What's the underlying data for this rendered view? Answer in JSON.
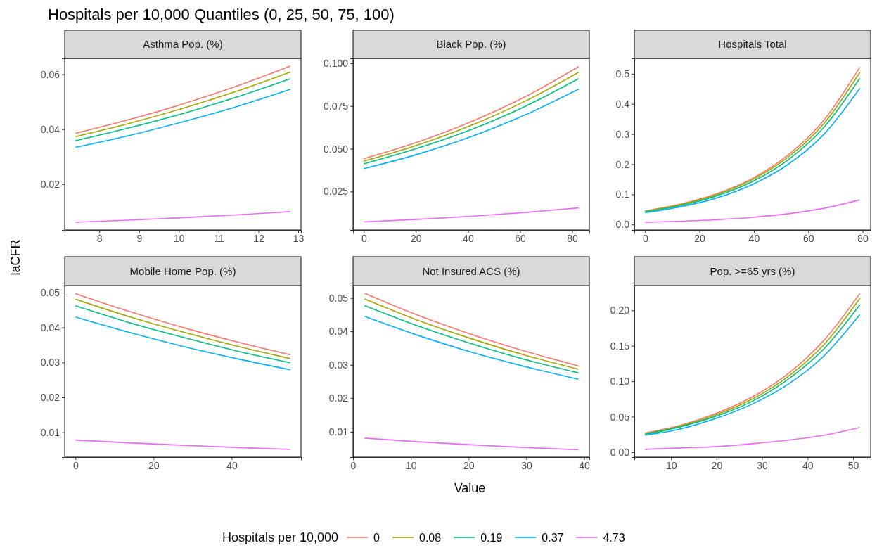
{
  "chart_data": [
    {
      "type": "line",
      "title": "Asthma Pop. (%)",
      "annotations": [
        "Hospitals per 10,000 Quantiles (0, 25, 50, 75, 100)"
      ],
      "ylabel": "laCFR",
      "legend_title": "Hospitals per 10,000",
      "legend": "bottom",
      "grid": false,
      "marker": "none",
      "line_style": "solid",
      "xlim": [
        7.13,
        13.07
      ],
      "xticks": [
        8,
        9,
        10,
        11,
        12,
        13
      ],
      "ylim": [
        0.0033,
        0.0658
      ],
      "yticks": [
        {
          "value": 0.02,
          "label": "0.02"
        },
        {
          "value": 0.04,
          "label": "0.04"
        },
        {
          "value": 0.06,
          "label": "0.06"
        }
      ],
      "series": [
        {
          "name": "0",
          "color": "#f8766d",
          "x": [
            7.4,
            8.75,
            10.1,
            11.45,
            12.8
          ],
          "values": [
            0.0385,
            0.0435,
            0.0492,
            0.0557,
            0.063
          ]
        },
        {
          "name": "0.08",
          "color": "#a3a500",
          "x": [
            7.4,
            8.75,
            10.1,
            11.45,
            12.8
          ],
          "values": [
            0.0373,
            0.0421,
            0.0476,
            0.0538,
            0.0608
          ]
        },
        {
          "name": "0.19",
          "color": "#00bf7d",
          "x": [
            7.4,
            8.75,
            10.1,
            11.45,
            12.8
          ],
          "values": [
            0.0358,
            0.0405,
            0.0457,
            0.0517,
            0.0584
          ]
        },
        {
          "name": "0.37",
          "color": "#00b0f6",
          "x": [
            7.4,
            8.75,
            10.1,
            11.45,
            12.8
          ],
          "values": [
            0.0334,
            0.0377,
            0.0427,
            0.0482,
            0.0545
          ]
        },
        {
          "name": "4.73",
          "color": "#e76bf3",
          "x": [
            7.4,
            8.75,
            10.1,
            11.45,
            12.8
          ],
          "values": [
            0.0061,
            0.0069,
            0.0078,
            0.0088,
            0.01
          ]
        }
      ]
    },
    {
      "type": "line",
      "title": "Black Pop. (%)",
      "grid": false,
      "marker": "none",
      "line_style": "solid",
      "xlim": [
        -4.125,
        86.625
      ],
      "xticks": [
        0,
        20,
        40,
        60,
        80
      ],
      "ylim": [
        0.0026,
        0.1028
      ],
      "yticks": [
        {
          "value": 0.025,
          "label": "0.025"
        },
        {
          "value": 0.05,
          "label": "0.050"
        },
        {
          "value": 0.075,
          "label": "0.075"
        },
        {
          "value": 0.1,
          "label": "0.100"
        }
      ],
      "series": [
        {
          "color": "#f8766d",
          "x": [
            0,
            20.63,
            41.25,
            61.88,
            82.5
          ],
          "values": [
            0.0442,
            0.0539,
            0.0658,
            0.0803,
            0.098
          ]
        },
        {
          "color": "#a3a500",
          "x": [
            0,
            20.63,
            41.25,
            61.88,
            82.5
          ],
          "values": [
            0.0428,
            0.0522,
            0.0637,
            0.0777,
            0.0947
          ]
        },
        {
          "color": "#00bf7d",
          "x": [
            0,
            20.63,
            41.25,
            61.88,
            82.5
          ],
          "values": [
            0.0412,
            0.0503,
            0.0612,
            0.0747,
            0.091
          ]
        },
        {
          "color": "#00b0f6",
          "x": [
            0,
            20.63,
            41.25,
            61.88,
            82.5
          ],
          "values": [
            0.0384,
            0.0468,
            0.0571,
            0.0697,
            0.0848
          ]
        },
        {
          "color": "#e76bf3",
          "x": [
            0,
            20.63,
            41.25,
            61.88,
            82.5
          ],
          "values": [
            0.0073,
            0.0088,
            0.0106,
            0.0128,
            0.0155
          ]
        }
      ]
    },
    {
      "type": "line",
      "title": "Hospitals Total",
      "grid": false,
      "marker": "none",
      "line_style": "solid",
      "xlim": [
        -3.95,
        82.95
      ],
      "xticks": [
        0,
        20,
        40,
        60,
        80
      ],
      "ylim": [
        -0.018,
        0.551
      ],
      "yticks": [
        {
          "value": 0,
          "label": "0.0"
        },
        0.1,
        0.2,
        0.3,
        0.4,
        0.5
      ],
      "series": [
        {
          "color": "#f8766d",
          "x": [
            0,
            13.17,
            26.33,
            39.5,
            52.67,
            65.83,
            79
          ],
          "values": [
            0.045,
            0.068,
            0.102,
            0.153,
            0.231,
            0.347,
            0.522
          ]
        },
        {
          "color": "#a3a500",
          "x": [
            0,
            13.17,
            26.33,
            39.5,
            52.67,
            65.83,
            79
          ],
          "values": [
            0.044,
            0.066,
            0.099,
            0.149,
            0.224,
            0.336,
            0.505
          ]
        },
        {
          "color": "#00bf7d",
          "x": [
            0,
            13.17,
            26.33,
            39.5,
            52.67,
            65.83,
            79
          ],
          "values": [
            0.042,
            0.063,
            0.095,
            0.143,
            0.215,
            0.323,
            0.485
          ]
        },
        {
          "color": "#00b0f6",
          "x": [
            0,
            13.17,
            26.33,
            39.5,
            52.67,
            65.83,
            79
          ],
          "values": [
            0.039,
            0.059,
            0.088,
            0.133,
            0.2,
            0.3,
            0.452
          ]
        },
        {
          "color": "#e76bf3",
          "x": [
            0,
            13.17,
            26.33,
            39.5,
            52.67,
            65.83,
            79
          ],
          "values": [
            0.007,
            0.011,
            0.016,
            0.024,
            0.036,
            0.054,
            0.082
          ]
        }
      ]
    },
    {
      "type": "line",
      "title": "Mobile Home Pop. (%)",
      "grid": false,
      "marker": "none",
      "line_style": "solid",
      "xlim": [
        -2.75,
        57.75
      ],
      "xticks": [
        0,
        20,
        40
      ],
      "ylim": [
        0.0029,
        0.052
      ],
      "yticks": [
        {
          "value": 0.01,
          "label": "0.01"
        },
        {
          "value": 0.02,
          "label": "0.02"
        },
        {
          "value": 0.03,
          "label": "0.03"
        },
        {
          "value": 0.04,
          "label": "0.04"
        },
        {
          "value": 0.05,
          "label": "0.05"
        }
      ],
      "series": [
        {
          "color": "#f8766d",
          "x": [
            0,
            13.75,
            27.5,
            41.25,
            55
          ],
          "values": [
            0.0497,
            0.0446,
            0.04,
            0.0359,
            0.0322
          ]
        },
        {
          "color": "#a3a500",
          "x": [
            0,
            13.75,
            27.5,
            41.25,
            55
          ],
          "values": [
            0.0481,
            0.0431,
            0.0387,
            0.0347,
            0.0311
          ]
        },
        {
          "color": "#00bf7d",
          "x": [
            0,
            13.75,
            27.5,
            41.25,
            55
          ],
          "values": [
            0.0462,
            0.0414,
            0.0372,
            0.0333,
            0.0299
          ]
        },
        {
          "color": "#00b0f6",
          "x": [
            0,
            13.75,
            27.5,
            41.25,
            55
          ],
          "values": [
            0.043,
            0.0386,
            0.0346,
            0.0311,
            0.0279
          ]
        },
        {
          "color": "#e76bf3",
          "x": [
            0,
            13.75,
            27.5,
            41.25,
            55
          ],
          "values": [
            0.0078,
            0.007,
            0.0063,
            0.0057,
            0.0051
          ]
        }
      ]
    },
    {
      "type": "line",
      "title": "Not Insured ACS (%)",
      "xlabel": "Value",
      "grid": false,
      "marker": "none",
      "line_style": "solid",
      "xlim": [
        0,
        40.9
      ],
      "xticks": [
        0,
        10,
        20,
        30,
        40
      ],
      "ylim": [
        0.0024,
        0.0537
      ],
      "yticks": [
        {
          "value": 0.01,
          "label": "0.01"
        },
        {
          "value": 0.02,
          "label": "0.02"
        },
        {
          "value": 0.03,
          "label": "0.03"
        },
        {
          "value": 0.04,
          "label": "0.04"
        },
        {
          "value": 0.05,
          "label": "0.05"
        }
      ],
      "series": [
        {
          "color": "#f8766d",
          "x": [
            2,
            11.25,
            20.5,
            29.75,
            39
          ],
          "values": [
            0.0514,
            0.0448,
            0.0391,
            0.0341,
            0.0297
          ]
        },
        {
          "color": "#a3a500",
          "x": [
            2,
            11.25,
            20.5,
            29.75,
            39
          ],
          "values": [
            0.0497,
            0.0433,
            0.0378,
            0.0329,
            0.0287
          ]
        },
        {
          "color": "#00bf7d",
          "x": [
            2,
            11.25,
            20.5,
            29.75,
            39
          ],
          "values": [
            0.0477,
            0.0416,
            0.0363,
            0.0316,
            0.0276
          ]
        },
        {
          "color": "#00b0f6",
          "x": [
            2,
            11.25,
            20.5,
            29.75,
            39
          ],
          "values": [
            0.0445,
            0.0388,
            0.0338,
            0.0295,
            0.0257
          ]
        },
        {
          "color": "#e76bf3",
          "x": [
            2,
            11.25,
            20.5,
            29.75,
            39
          ],
          "values": [
            0.0081,
            0.007,
            0.0061,
            0.0053,
            0.0046
          ]
        }
      ]
    },
    {
      "type": "line",
      "title": "Pop. >=65 yrs (%)",
      "grid": false,
      "marker": "none",
      "line_style": "solid",
      "xlim": [
        1.94,
        53.86
      ],
      "xticks": [
        10,
        20,
        30,
        40,
        50
      ],
      "ylim": [
        -0.007,
        0.235
      ],
      "yticks": [
        {
          "value": 0,
          "label": "0.00"
        },
        {
          "value": 0.05,
          "label": "0.05"
        },
        {
          "value": 0.1,
          "label": "0.10"
        },
        {
          "value": 0.15,
          "label": "0.15"
        },
        {
          "value": 0.2,
          "label": "0.20"
        }
      ],
      "series": [
        {
          "color": "#f8766d",
          "x": [
            4.3,
            12.17,
            20.03,
            27.9,
            35.77,
            43.63,
            51.5
          ],
          "values": [
            0.027,
            0.038,
            0.055,
            0.078,
            0.111,
            0.158,
            0.224
          ]
        },
        {
          "color": "#a3a500",
          "x": [
            4.3,
            12.17,
            20.03,
            27.9,
            35.77,
            43.63,
            51.5
          ],
          "values": [
            0.026,
            0.037,
            0.053,
            0.075,
            0.107,
            0.152,
            0.217
          ]
        },
        {
          "color": "#00bf7d",
          "x": [
            4.3,
            12.17,
            20.03,
            27.9,
            35.77,
            43.63,
            51.5
          ],
          "values": [
            0.025,
            0.036,
            0.051,
            0.072,
            0.103,
            0.146,
            0.208
          ]
        },
        {
          "color": "#00b0f6",
          "x": [
            4.3,
            12.17,
            20.03,
            27.9,
            35.77,
            43.63,
            51.5
          ],
          "values": [
            0.024,
            0.033,
            0.048,
            0.068,
            0.096,
            0.136,
            0.194
          ]
        },
        {
          "color": "#e76bf3",
          "x": [
            4.3,
            12.17,
            20.03,
            27.9,
            35.77,
            43.63,
            51.5
          ],
          "values": [
            0.004,
            0.006,
            0.008,
            0.012,
            0.017,
            0.024,
            0.035
          ]
        }
      ]
    }
  ]
}
